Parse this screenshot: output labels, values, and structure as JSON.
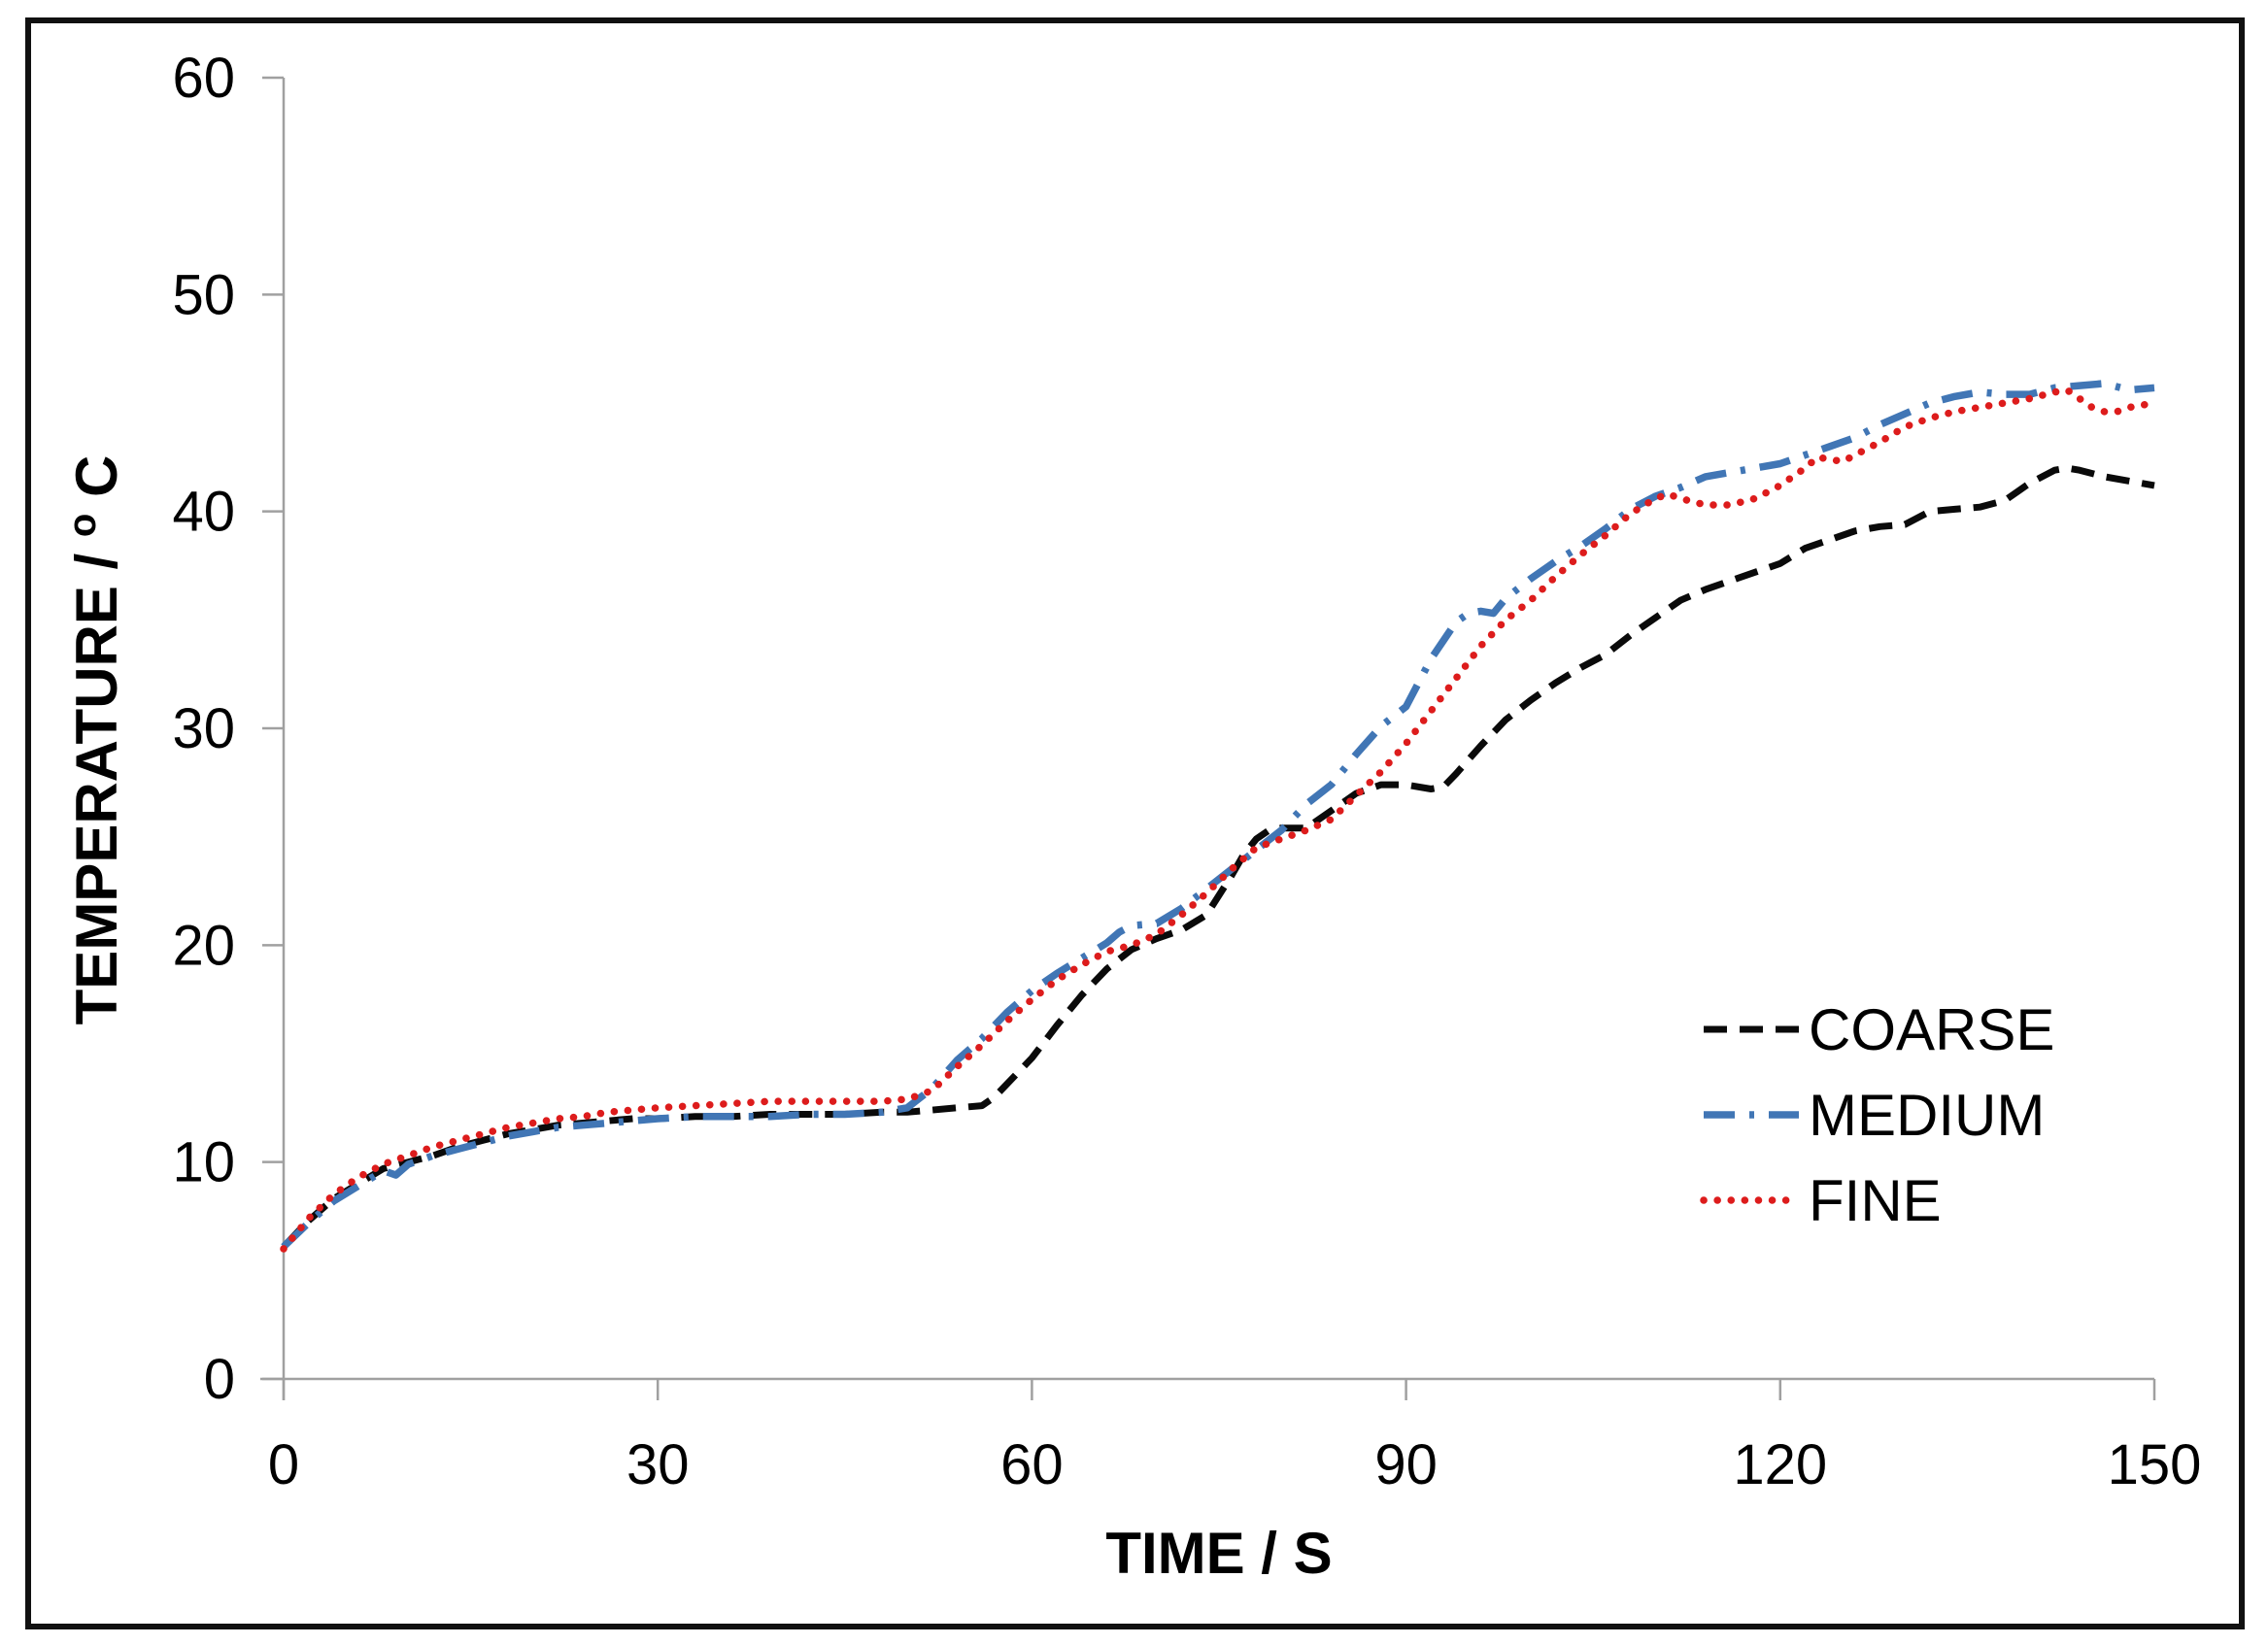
{
  "figure": {
    "background": "#ffffff",
    "border_color": "#111111"
  },
  "labels": {
    "x_title": "TIME / S",
    "y_title_prefix": "TEMPERATURE / ",
    "y_title_sup": "o",
    "y_title_suffix": "C"
  },
  "chart_data": {
    "type": "line",
    "title": "",
    "xlabel": "TIME / S",
    "ylabel": "TEMPERATURE / oC",
    "xlim": [
      0,
      150
    ],
    "ylim": [
      0,
      60
    ],
    "xticks": [
      0,
      30,
      60,
      90,
      120,
      150
    ],
    "yticks": [
      0,
      10,
      20,
      30,
      40,
      50,
      60
    ],
    "grid": false,
    "legend_position": "middle-right",
    "axis_color": "#a0a0a0",
    "series": [
      {
        "name": "COARSE",
        "color": "#0a0a0a",
        "line_style": "dashed",
        "points": [
          [
            0,
            6.1
          ],
          [
            2,
            7.3
          ],
          [
            4,
            8.3
          ],
          [
            6,
            9.0
          ],
          [
            8,
            9.7
          ],
          [
            10,
            10.0
          ],
          [
            12,
            10.3
          ],
          [
            14,
            10.7
          ],
          [
            16,
            11.0
          ],
          [
            18,
            11.3
          ],
          [
            20,
            11.5
          ],
          [
            22,
            11.7
          ],
          [
            24,
            11.8
          ],
          [
            26,
            11.9
          ],
          [
            28,
            12.0
          ],
          [
            30,
            12.0
          ],
          [
            33,
            12.1
          ],
          [
            36,
            12.1
          ],
          [
            39,
            12.2
          ],
          [
            42,
            12.2
          ],
          [
            45,
            12.2
          ],
          [
            48,
            12.3
          ],
          [
            50,
            12.3
          ],
          [
            52,
            12.4
          ],
          [
            54,
            12.5
          ],
          [
            56,
            12.6
          ],
          [
            57,
            13.0
          ],
          [
            58,
            13.6
          ],
          [
            60,
            14.8
          ],
          [
            62,
            16.3
          ],
          [
            64,
            17.7
          ],
          [
            66,
            18.9
          ],
          [
            68,
            19.8
          ],
          [
            70,
            20.3
          ],
          [
            72,
            20.7
          ],
          [
            74,
            21.4
          ],
          [
            76,
            23.2
          ],
          [
            77,
            24.2
          ],
          [
            78,
            24.9
          ],
          [
            79,
            25.3
          ],
          [
            80,
            25.4
          ],
          [
            82,
            25.4
          ],
          [
            84,
            26.2
          ],
          [
            86,
            27.0
          ],
          [
            88,
            27.4
          ],
          [
            90,
            27.4
          ],
          [
            92,
            27.2
          ],
          [
            93,
            27.3
          ],
          [
            94,
            27.9
          ],
          [
            96,
            29.2
          ],
          [
            98,
            30.4
          ],
          [
            100,
            31.3
          ],
          [
            102,
            32.1
          ],
          [
            104,
            32.8
          ],
          [
            106,
            33.4
          ],
          [
            108,
            34.3
          ],
          [
            110,
            35.1
          ],
          [
            112,
            35.9
          ],
          [
            114,
            36.4
          ],
          [
            116,
            36.8
          ],
          [
            118,
            37.2
          ],
          [
            120,
            37.6
          ],
          [
            122,
            38.3
          ],
          [
            124,
            38.7
          ],
          [
            126,
            39.1
          ],
          [
            128,
            39.3
          ],
          [
            130,
            39.4
          ],
          [
            132,
            40.0
          ],
          [
            134,
            40.1
          ],
          [
            136,
            40.2
          ],
          [
            138,
            40.5
          ],
          [
            140,
            41.3
          ],
          [
            142,
            41.9
          ],
          [
            143,
            42.0
          ],
          [
            144,
            41.9
          ],
          [
            146,
            41.6
          ],
          [
            148,
            41.4
          ],
          [
            150,
            41.2
          ]
        ]
      },
      {
        "name": "MEDIUM",
        "color": "#4176b5",
        "line_style": "dash-dot",
        "points": [
          [
            0,
            6.1
          ],
          [
            2,
            7.2
          ],
          [
            4,
            8.2
          ],
          [
            6,
            8.9
          ],
          [
            8,
            9.6
          ],
          [
            9,
            9.4
          ],
          [
            10,
            9.9
          ],
          [
            12,
            10.3
          ],
          [
            14,
            10.6
          ],
          [
            16,
            10.9
          ],
          [
            18,
            11.2
          ],
          [
            20,
            11.4
          ],
          [
            22,
            11.6
          ],
          [
            24,
            11.7
          ],
          [
            26,
            11.8
          ],
          [
            28,
            11.9
          ],
          [
            30,
            12.0
          ],
          [
            33,
            12.1
          ],
          [
            36,
            12.1
          ],
          [
            39,
            12.1
          ],
          [
            42,
            12.2
          ],
          [
            45,
            12.2
          ],
          [
            48,
            12.3
          ],
          [
            50,
            12.5
          ],
          [
            52,
            13.4
          ],
          [
            54,
            14.7
          ],
          [
            56,
            15.7
          ],
          [
            58,
            16.9
          ],
          [
            60,
            17.9
          ],
          [
            62,
            18.7
          ],
          [
            64,
            19.4
          ],
          [
            66,
            20.1
          ],
          [
            67,
            20.6
          ],
          [
            68,
            20.9
          ],
          [
            70,
            21.0
          ],
          [
            72,
            21.7
          ],
          [
            74,
            22.6
          ],
          [
            76,
            23.5
          ],
          [
            78,
            24.4
          ],
          [
            80,
            25.3
          ],
          [
            82,
            26.5
          ],
          [
            84,
            27.4
          ],
          [
            86,
            28.8
          ],
          [
            88,
            30.1
          ],
          [
            90,
            31.0
          ],
          [
            92,
            33.2
          ],
          [
            94,
            34.9
          ],
          [
            95,
            35.3
          ],
          [
            96,
            35.4
          ],
          [
            97,
            35.3
          ],
          [
            98,
            36.0
          ],
          [
            100,
            36.9
          ],
          [
            102,
            37.7
          ],
          [
            104,
            38.4
          ],
          [
            106,
            39.2
          ],
          [
            108,
            40.1
          ],
          [
            110,
            40.7
          ],
          [
            112,
            41.1
          ],
          [
            114,
            41.6
          ],
          [
            116,
            41.8
          ],
          [
            118,
            42.0
          ],
          [
            120,
            42.2
          ],
          [
            122,
            42.6
          ],
          [
            124,
            43.0
          ],
          [
            126,
            43.4
          ],
          [
            128,
            44.0
          ],
          [
            130,
            44.5
          ],
          [
            132,
            45.0
          ],
          [
            134,
            45.3
          ],
          [
            136,
            45.5
          ],
          [
            138,
            45.4
          ],
          [
            140,
            45.4
          ],
          [
            142,
            45.7
          ],
          [
            144,
            45.8
          ],
          [
            146,
            45.9
          ],
          [
            148,
            45.6
          ],
          [
            150,
            45.7
          ]
        ]
      },
      {
        "name": "FINE",
        "color": "#dd1c1c",
        "line_style": "dotted",
        "points": [
          [
            0,
            6.0
          ],
          [
            2,
            7.4
          ],
          [
            4,
            8.5
          ],
          [
            6,
            9.3
          ],
          [
            8,
            9.9
          ],
          [
            10,
            10.3
          ],
          [
            12,
            10.7
          ],
          [
            14,
            11.0
          ],
          [
            16,
            11.3
          ],
          [
            18,
            11.6
          ],
          [
            20,
            11.8
          ],
          [
            22,
            12.0
          ],
          [
            24,
            12.1
          ],
          [
            26,
            12.3
          ],
          [
            28,
            12.4
          ],
          [
            30,
            12.5
          ],
          [
            33,
            12.6
          ],
          [
            36,
            12.7
          ],
          [
            39,
            12.8
          ],
          [
            42,
            12.8
          ],
          [
            45,
            12.8
          ],
          [
            48,
            12.8
          ],
          [
            50,
            12.9
          ],
          [
            52,
            13.3
          ],
          [
            54,
            14.4
          ],
          [
            56,
            15.4
          ],
          [
            58,
            16.5
          ],
          [
            60,
            17.5
          ],
          [
            62,
            18.4
          ],
          [
            64,
            19.1
          ],
          [
            66,
            19.7
          ],
          [
            68,
            20.0
          ],
          [
            70,
            20.5
          ],
          [
            72,
            21.4
          ],
          [
            74,
            22.4
          ],
          [
            76,
            23.5
          ],
          [
            78,
            24.5
          ],
          [
            80,
            24.9
          ],
          [
            82,
            25.3
          ],
          [
            84,
            25.8
          ],
          [
            86,
            26.9
          ],
          [
            88,
            28.0
          ],
          [
            90,
            29.3
          ],
          [
            92,
            30.8
          ],
          [
            94,
            32.3
          ],
          [
            96,
            33.8
          ],
          [
            98,
            35.0
          ],
          [
            100,
            35.9
          ],
          [
            102,
            37.0
          ],
          [
            104,
            38.0
          ],
          [
            106,
            38.9
          ],
          [
            108,
            39.9
          ],
          [
            110,
            40.6
          ],
          [
            111,
            40.8
          ],
          [
            112,
            40.6
          ],
          [
            114,
            40.3
          ],
          [
            116,
            40.3
          ],
          [
            118,
            40.6
          ],
          [
            120,
            41.2
          ],
          [
            122,
            42.0
          ],
          [
            123,
            42.5
          ],
          [
            124,
            42.4
          ],
          [
            125,
            42.3
          ],
          [
            126,
            42.6
          ],
          [
            128,
            43.2
          ],
          [
            130,
            43.9
          ],
          [
            132,
            44.3
          ],
          [
            134,
            44.6
          ],
          [
            136,
            44.8
          ],
          [
            138,
            45.0
          ],
          [
            140,
            45.2
          ],
          [
            142,
            45.5
          ],
          [
            143,
            45.6
          ],
          [
            144,
            45.2
          ],
          [
            145,
            44.8
          ],
          [
            146,
            44.6
          ],
          [
            147,
            44.6
          ],
          [
            148,
            44.8
          ],
          [
            150,
            45.0
          ]
        ]
      }
    ]
  }
}
